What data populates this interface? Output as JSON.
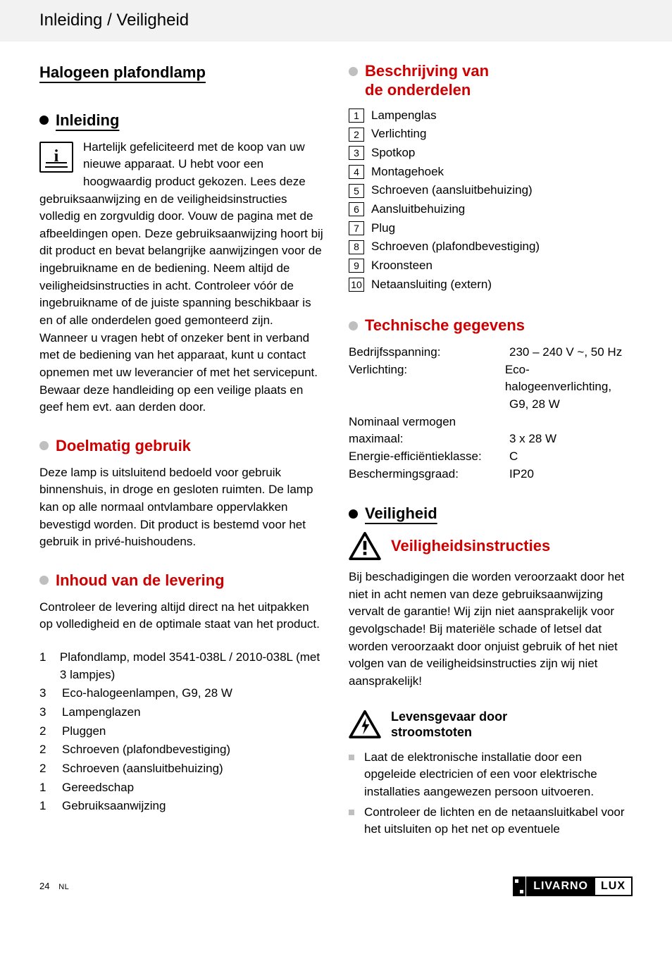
{
  "colors": {
    "accent": "#cc0000",
    "grey_dot": "#bfbfbf",
    "header_bg": "#f2f2f2",
    "text": "#000000",
    "background": "#ffffff"
  },
  "header": {
    "breadcrumb": "Inleiding / Veiligheid"
  },
  "product_title": "Halogeen plafondlamp",
  "left": {
    "intro": {
      "heading": "Inleiding",
      "body": "Hartelijk gefeliciteerd met de koop van uw nieuwe apparaat. U hebt voor een hoogwaardig product gekozen. Lees deze gebruiksaanwijzing en de veiligheidsinstructies volledig en zorgvuldig door. Vouw de pagina met de afbeeldingen open. Deze gebruiksaanwijzing hoort bij dit product en bevat belangrijke aanwijzingen voor de ingebruikname en de bediening. Neem altijd de veiligheidsinstructies in acht. Controleer vóór de ingebruikname of de juiste spanning beschikbaar is en of alle onderdelen goed gemonteerd zijn. Wanneer u vragen hebt of onzeker bent in verband met de bediening van het apparaat, kunt u contact opnemen met uw leverancier of met het servicepunt. Bewaar deze handleiding op een veilige plaats en geef hem evt. aan derden door."
    },
    "use": {
      "heading": "Doelmatig gebruik",
      "body": "Deze lamp is uitsluitend bedoeld voor gebruik binnenshuis, in droge en gesloten ruimten. De lamp kan op alle normaal ontvlambare oppervlakken bevestigd worden. Dit product is bestemd voor het gebruik in privé-huishoudens."
    },
    "scope": {
      "heading": "Inhoud van de levering",
      "body": "Controleer de levering altijd direct na het uitpakken op volledigheid en de optimale staat van het product.",
      "items": [
        {
          "qty": "1",
          "label": "Plafondlamp, model 3541-038L / 2010-038L (met 3 lampjes)"
        },
        {
          "qty": "3",
          "label": "Eco-halogeenlampen, G9, 28 W"
        },
        {
          "qty": "3",
          "label": "Lampenglazen"
        },
        {
          "qty": "2",
          "label": "Pluggen"
        },
        {
          "qty": "2",
          "label": "Schroeven (plafondbevestiging)"
        },
        {
          "qty": "2",
          "label": "Schroeven (aansluitbehuizing)"
        },
        {
          "qty": "1",
          "label": "Gereedschap"
        },
        {
          "qty": "1",
          "label": "Gebruiksaanwijzing"
        }
      ]
    }
  },
  "right": {
    "parts": {
      "heading_l1": "Beschrijving van",
      "heading_l2": "de onderdelen",
      "items": [
        {
          "n": "1",
          "label": "Lampenglas"
        },
        {
          "n": "2",
          "label": "Verlichting"
        },
        {
          "n": "3",
          "label": "Spotkop"
        },
        {
          "n": "4",
          "label": "Montagehoek"
        },
        {
          "n": "5",
          "label": "Schroeven (aansluitbehuizing)"
        },
        {
          "n": "6",
          "label": "Aansluitbehuizing"
        },
        {
          "n": "7",
          "label": "Plug"
        },
        {
          "n": "8",
          "label": "Schroeven (plafondbevestiging)"
        },
        {
          "n": "9",
          "label": "Kroonsteen"
        },
        {
          "n": "10",
          "label": "Netaansluiting (extern)"
        }
      ]
    },
    "tech": {
      "heading": "Technische gegevens",
      "rows": [
        {
          "k": "Bedrijfsspanning:",
          "v": "230 – 240 V ~, 50 Hz"
        },
        {
          "k": "Verlichting:",
          "v": "Eco-halogeenverlichting, G9, 28 W"
        },
        {
          "k": "Nominaal vermogen maximaal:",
          "v": "3 x 28 W"
        },
        {
          "k": "Energie-efficiëntieklasse:",
          "v": "C"
        },
        {
          "k": "Beschermingsgraad:",
          "v": "IP20"
        }
      ]
    },
    "safety": {
      "heading": "Veiligheid",
      "instructions_heading": "Veiligheidsinstructies",
      "instructions_body": "Bij beschadigingen die worden veroorzaakt door het niet in acht nemen van deze gebruiksaanwijzing vervalt de garantie! Wij zijn niet aansprakelijk voor gevolgschade! Bij materiële schade of letsel dat worden veroorzaakt door onjuist gebruik of het niet volgen van de veiligheidsinstructies zijn wij niet aansprakelijk!",
      "shock_heading_l1": "Levensgevaar door",
      "shock_heading_l2": "stroomstoten",
      "bullets": [
        "Laat de elektronische installatie door een opgeleide electricien of een voor elektrische installaties aangewezen persoon uitvoeren.",
        "Controleer de lichten en de netaansluitkabel voor het uitsluiten op het net op eventuele"
      ]
    }
  },
  "footer": {
    "page_number": "24",
    "lang": "NL",
    "brand_left": "LIVARNO",
    "brand_right": "LUX"
  }
}
